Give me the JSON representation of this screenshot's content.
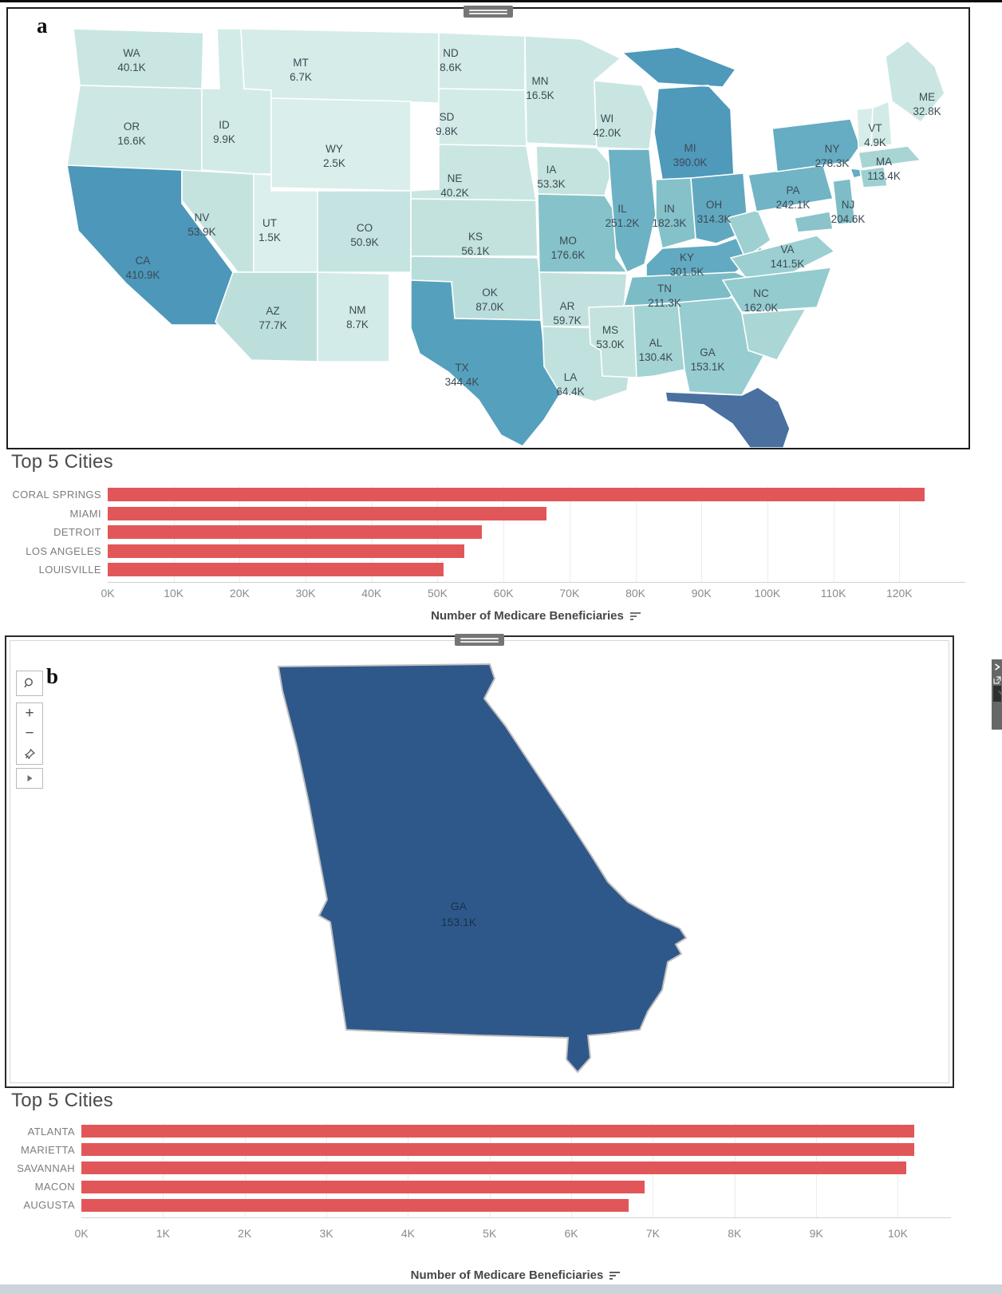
{
  "colors": {
    "bar_red": "#e15759",
    "map_scale_low": "#dbefec",
    "map_scale_high": "#4c97ba",
    "florida_navy": "#4a70a0",
    "georgia_panel_fill": "#2f588a",
    "strip_bg": "#676767"
  },
  "panels": {
    "a": {
      "label": "a"
    },
    "b": {
      "label": "b",
      "map_toolbar": {
        "icons": [
          "search-icon",
          "zoom-in-icon",
          "zoom-out-icon",
          "pin-icon",
          "play-icon"
        ],
        "zoom_in_glyph": "+",
        "zoom_out_glyph": "−"
      },
      "side_strip": {
        "icons": [
          "chevron-icon",
          "export-icon",
          "flag-icon"
        ]
      }
    }
  },
  "chart_data": [
    {
      "id": "us_choropleth",
      "type": "choropleth",
      "region": "United States",
      "value_label": "Number of Medicare Beneficiaries",
      "states": [
        {
          "abbr": "WA",
          "value": "40.1K",
          "fill": "#c9e6e2",
          "labeled": true
        },
        {
          "abbr": "OR",
          "value": "16.6K",
          "fill": "#cde8e4",
          "labeled": true
        },
        {
          "abbr": "CA",
          "value": "410.9K",
          "fill": "#4c97ba",
          "labeled": true
        },
        {
          "abbr": "NV",
          "value": "53.9K",
          "fill": "#c4e3df",
          "labeled": true
        },
        {
          "abbr": "ID",
          "value": "9.9K",
          "fill": "#d2ebe7",
          "labeled": true
        },
        {
          "abbr": "MT",
          "value": "6.7K",
          "fill": "#d5ece9",
          "labeled": true
        },
        {
          "abbr": "WY",
          "value": "2.5K",
          "fill": "#daeeeb",
          "labeled": true
        },
        {
          "abbr": "UT",
          "value": "1.5K",
          "fill": "#dbefec",
          "labeled": true
        },
        {
          "abbr": "CO",
          "value": "50.9K",
          "fill": "#c5e3e0",
          "labeled": true
        },
        {
          "abbr": "AZ",
          "value": "77.7K",
          "fill": "#bcdfdc",
          "labeled": true
        },
        {
          "abbr": "NM",
          "value": "8.7K",
          "fill": "#d3ebe8",
          "labeled": true
        },
        {
          "abbr": "ND",
          "value": "8.6K",
          "fill": "#d3ebe8",
          "labeled": true
        },
        {
          "abbr": "SD",
          "value": "9.8K",
          "fill": "#d2ebe7",
          "labeled": true
        },
        {
          "abbr": "NE",
          "value": "40.2K",
          "fill": "#c9e6e2",
          "labeled": true
        },
        {
          "abbr": "KS",
          "value": "56.1K",
          "fill": "#c3e2de",
          "labeled": true
        },
        {
          "abbr": "OK",
          "value": "87.0K",
          "fill": "#b8dddb",
          "labeled": true
        },
        {
          "abbr": "TX",
          "value": "344.4K",
          "fill": "#55a0bd",
          "labeled": true
        },
        {
          "abbr": "MN",
          "value": "16.5K",
          "fill": "#cde8e4",
          "labeled": true
        },
        {
          "abbr": "IA",
          "value": "53.3K",
          "fill": "#c4e3df",
          "labeled": true
        },
        {
          "abbr": "MO",
          "value": "176.6K",
          "fill": "#86c2c9",
          "labeled": true
        },
        {
          "abbr": "AR",
          "value": "59.7K",
          "fill": "#c2e1de",
          "labeled": true
        },
        {
          "abbr": "LA",
          "value": "64.4K",
          "fill": "#c0e1dd",
          "labeled": true
        },
        {
          "abbr": "WI",
          "value": "42.0K",
          "fill": "#c8e5e1",
          "labeled": true
        },
        {
          "abbr": "IL",
          "value": "251.2K",
          "fill": "#6db2c4",
          "labeled": true
        },
        {
          "abbr": "MI",
          "value": "390.0K",
          "fill": "#4f99bb",
          "labeled": true
        },
        {
          "abbr": "IN",
          "value": "182.3K",
          "fill": "#84c1c8",
          "labeled": true
        },
        {
          "abbr": "OH",
          "value": "314.3K",
          "fill": "#60a8c0",
          "labeled": true
        },
        {
          "abbr": "KY",
          "value": "301.5K",
          "fill": "#62aac1",
          "labeled": true
        },
        {
          "abbr": "TN",
          "value": "211.3K",
          "fill": "#7cbcc7",
          "labeled": true
        },
        {
          "abbr": "MS",
          "value": "53.0K",
          "fill": "#c4e3df",
          "labeled": true
        },
        {
          "abbr": "AL",
          "value": "130.4K",
          "fill": "#a3d3d3",
          "labeled": true
        },
        {
          "abbr": "GA",
          "value": "153.1K",
          "fill": "#97cdd0",
          "labeled": true
        },
        {
          "abbr": "WV",
          "value": "",
          "fill": "#9ed0d1",
          "labeled": false
        },
        {
          "abbr": "VA",
          "value": "141.5K",
          "fill": "#9ccfd1",
          "labeled": true
        },
        {
          "abbr": "NC",
          "value": "162.0K",
          "fill": "#93cbcf",
          "labeled": true
        },
        {
          "abbr": "SC",
          "value": "",
          "fill": "#aad6d5",
          "labeled": false
        },
        {
          "abbr": "FL",
          "value": "",
          "fill": "#4a70a0",
          "labeled": false
        },
        {
          "abbr": "PA",
          "value": "242.1K",
          "fill": "#70b4c5",
          "labeled": true
        },
        {
          "abbr": "NY",
          "value": "278.3K",
          "fill": "#66acc2",
          "labeled": true
        },
        {
          "abbr": "NJ",
          "value": "204.6K",
          "fill": "#7ebdc7",
          "labeled": true
        },
        {
          "abbr": "MD",
          "value": "",
          "fill": "#8ac4ca",
          "labeled": false
        },
        {
          "abbr": "VT",
          "value": "4.9K",
          "fill": "#d7ede9",
          "labeled": true
        },
        {
          "abbr": "NH",
          "value": "",
          "fill": "#d2ebe7",
          "labeled": false
        },
        {
          "abbr": "MA",
          "value": "113.4K",
          "fill": "#a8d5d4",
          "labeled": true
        },
        {
          "abbr": "CT",
          "value": "",
          "fill": "#9ed0d1",
          "labeled": false
        },
        {
          "abbr": "ME",
          "value": "32.8K",
          "fill": "#cae6e3",
          "labeled": true
        }
      ]
    },
    {
      "id": "top5_us",
      "type": "bar",
      "title": "Top 5 Cities",
      "categories": [
        "CORAL SPRINGS",
        "MIAMI",
        "DETROIT",
        "LOS ANGELES",
        "LOUISVILLE"
      ],
      "values_k": [
        123.8,
        66.5,
        56.7,
        54.1,
        50.9
      ],
      "ticks_k": [
        0,
        10,
        20,
        30,
        40,
        50,
        60,
        70,
        80,
        90,
        100,
        110,
        120
      ],
      "axis_max_k": 130,
      "xlabel": "Number of Medicare Beneficiaries",
      "bar_color": "#e15759",
      "legend": "none",
      "grid": true
    },
    {
      "id": "georgia_map",
      "type": "choropleth",
      "region": "Georgia",
      "states": [
        {
          "abbr": "GA",
          "value": "153.1K",
          "fill": "#2f588a",
          "labeled": true
        }
      ]
    },
    {
      "id": "top5_ga",
      "type": "bar",
      "title": "Top 5 Cities",
      "categories": [
        "ATLANTA",
        "MARIETTA",
        "SAVANNAH",
        "MACON",
        "AUGUSTA"
      ],
      "values_k": [
        10.2,
        10.2,
        10.1,
        6.9,
        6.7
      ],
      "ticks_k": [
        0,
        1,
        2,
        3,
        4,
        5,
        6,
        7,
        8,
        9,
        10
      ],
      "axis_max_k": 10.65,
      "xlabel": "Number of Medicare Beneficiaries",
      "bar_color": "#e15759",
      "legend": "none",
      "grid": true
    }
  ]
}
